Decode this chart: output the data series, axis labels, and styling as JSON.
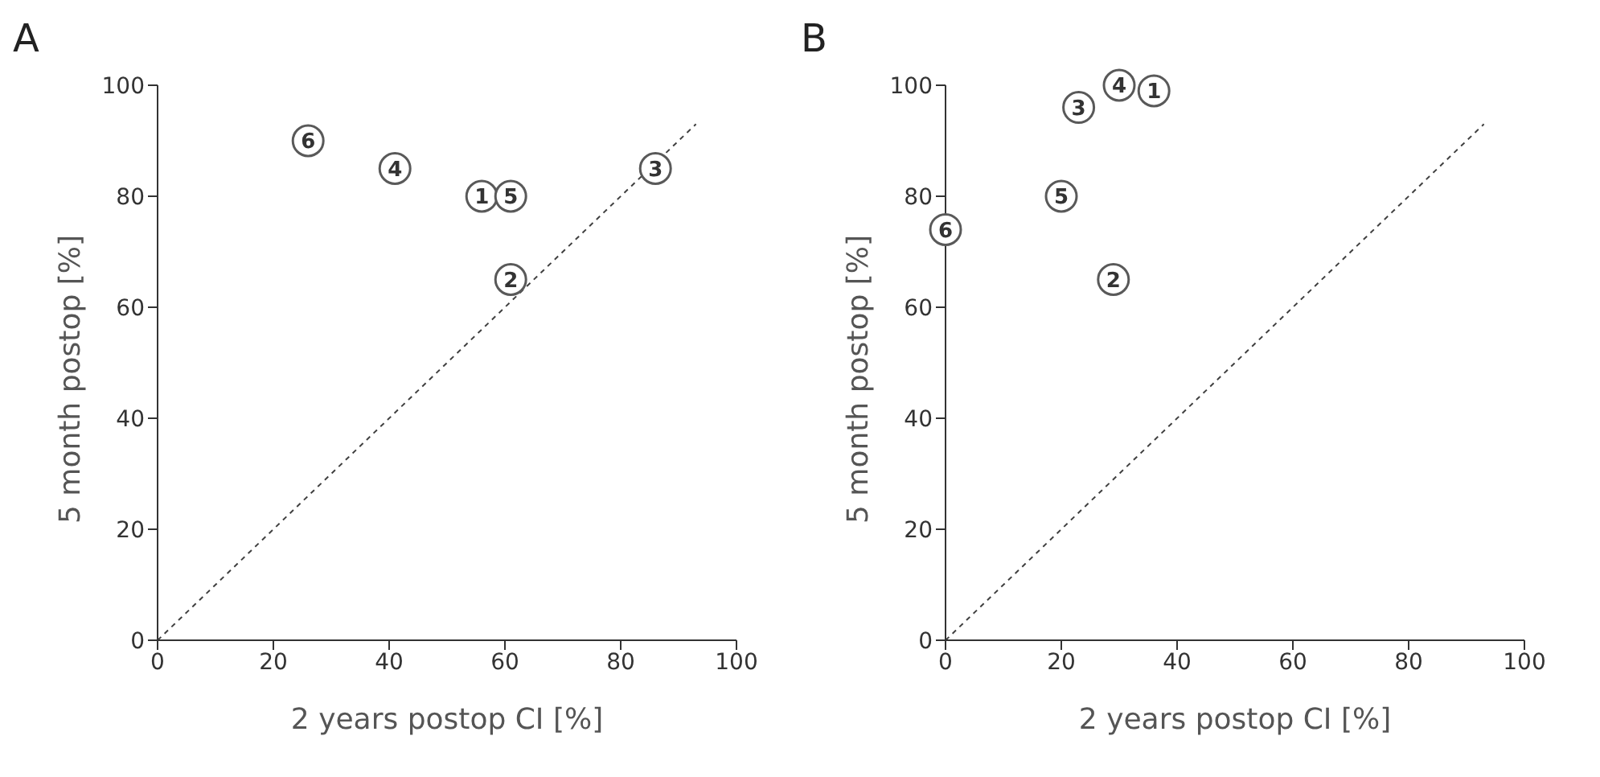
{
  "chart_data": [
    {
      "type": "scatter",
      "title": "A",
      "xlabel": "2 years postop CI [%]",
      "ylabel": "5 month postop [%]",
      "xlim": [
        0,
        100
      ],
      "ylim": [
        0,
        100
      ],
      "xticks": [
        0,
        20,
        40,
        60,
        80,
        100
      ],
      "yticks": [
        0,
        20,
        40,
        60,
        80,
        100
      ],
      "grid": false,
      "legend": false,
      "series": [
        {
          "type": "scatter",
          "marker": "circle",
          "color": "#595959",
          "x": [
            56,
            61,
            86,
            41,
            61,
            26
          ],
          "values": [
            80,
            65,
            85,
            85,
            80,
            90
          ]
        },
        {
          "type": "line",
          "marker": "none",
          "line_style": "dashed",
          "color": "#404040",
          "x": [
            0,
            93
          ],
          "values": [
            0,
            93
          ]
        }
      ],
      "annotations": [
        {
          "text": "1",
          "x": 56,
          "y": 80
        },
        {
          "text": "2",
          "x": 61,
          "y": 65
        },
        {
          "text": "3",
          "x": 86,
          "y": 85
        },
        {
          "text": "4",
          "x": 41,
          "y": 85
        },
        {
          "text": "5",
          "x": 61,
          "y": 80
        },
        {
          "text": "6",
          "x": 26,
          "y": 90
        }
      ]
    },
    {
      "type": "scatter",
      "title": "B",
      "xlabel": "2 years postop CI [%]",
      "ylabel": "5 month postop [%]",
      "xlim": [
        0,
        100
      ],
      "ylim": [
        0,
        100
      ],
      "xticks": [
        0,
        20,
        40,
        60,
        80,
        100
      ],
      "yticks": [
        0,
        20,
        40,
        60,
        80,
        100
      ],
      "grid": false,
      "legend": false,
      "series": [
        {
          "type": "scatter",
          "marker": "circle",
          "color": "#595959",
          "x": [
            36,
            29,
            23,
            30,
            20,
            0
          ],
          "values": [
            99,
            65,
            96,
            100,
            80,
            74
          ]
        },
        {
          "type": "line",
          "marker": "none",
          "line_style": "dashed",
          "color": "#404040",
          "x": [
            0,
            93
          ],
          "values": [
            0,
            93
          ]
        }
      ],
      "annotations": [
        {
          "text": "1",
          "x": 36,
          "y": 99
        },
        {
          "text": "2",
          "x": 29,
          "y": 65
        },
        {
          "text": "3",
          "x": 23,
          "y": 96
        },
        {
          "text": "4",
          "x": 30,
          "y": 100
        },
        {
          "text": "5",
          "x": 20,
          "y": 80
        },
        {
          "text": "6",
          "x": 0,
          "y": 74
        }
      ]
    }
  ]
}
